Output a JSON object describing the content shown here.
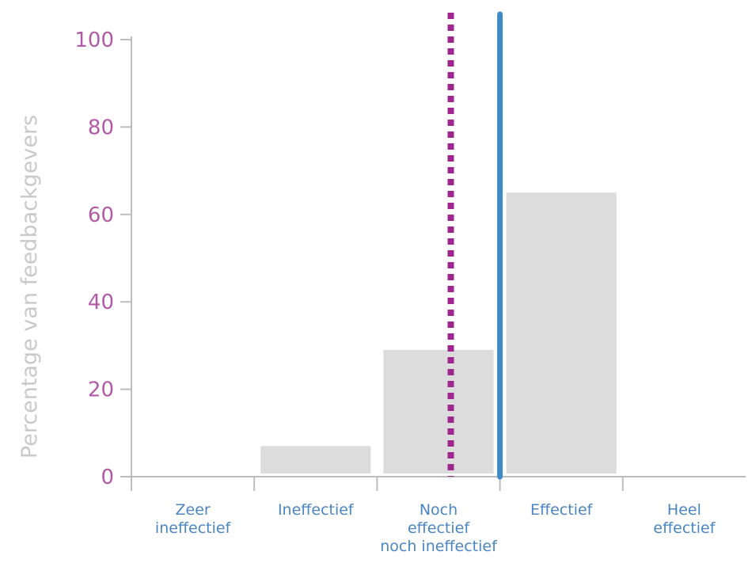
{
  "chart_data": {
    "type": "bar",
    "categories": [
      [
        "Zeer",
        "ineffectief"
      ],
      [
        "Ineffectief"
      ],
      [
        "Noch",
        "effectief",
        "noch ineffectief"
      ],
      [
        "Effectief"
      ],
      [
        "Heel",
        "effectief"
      ]
    ],
    "values": [
      0,
      7,
      29,
      65,
      0
    ],
    "ylabel": "Percentage van feedbackgevers",
    "xlabel": "",
    "ylim": [
      0,
      100
    ],
    "yticks": [
      0,
      20,
      40,
      60,
      80,
      100
    ],
    "grid": false,
    "reference_lines": [
      {
        "style": "dotted",
        "color": "#a0268f",
        "category_position": 2.6
      },
      {
        "style": "solid",
        "color": "#3e8ac7",
        "category_position": 3.0
      }
    ],
    "colors": {
      "bar": "#dcdcdc",
      "axis": "#bcbcbc",
      "ytick_text": "#b25aa5",
      "xtick_text": "#4a86c4",
      "ylabel_text": "#c9c9c9"
    }
  }
}
